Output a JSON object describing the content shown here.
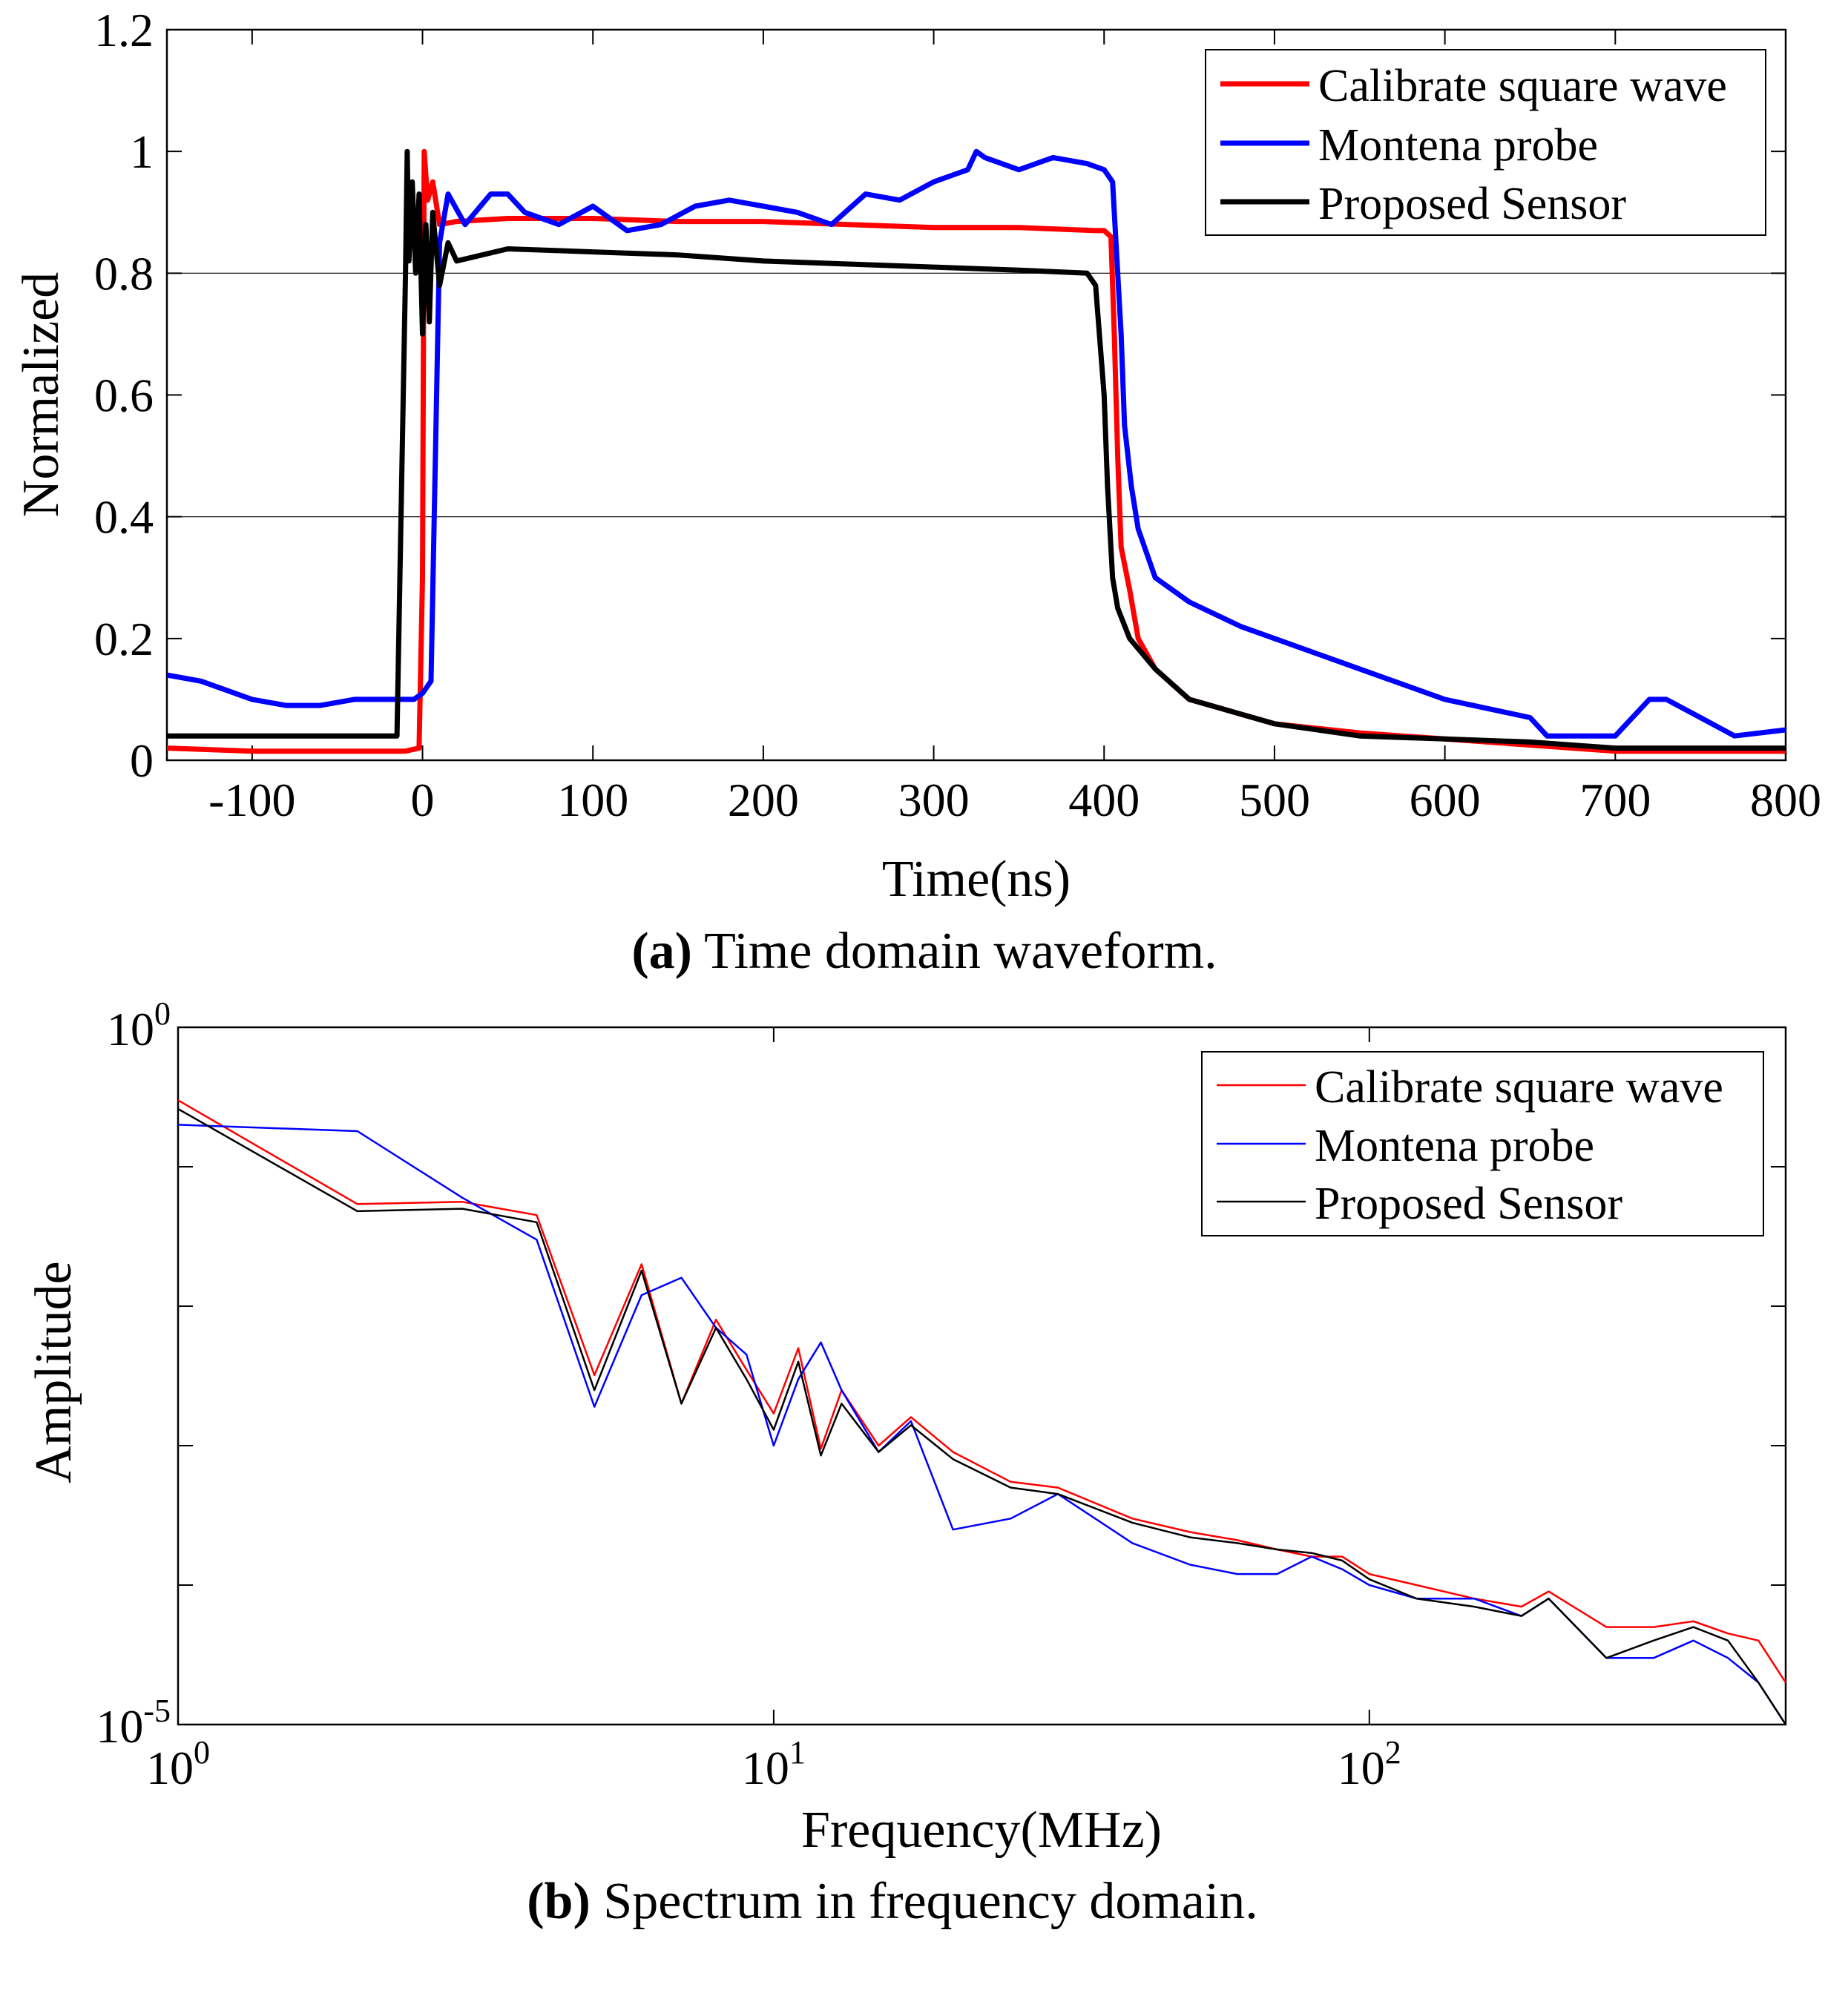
{
  "chart_data": [
    {
      "type": "line",
      "panel": "a",
      "caption_letter": "(a)",
      "caption_text": " Time domain waveform.",
      "xlabel": "Time(ns)",
      "ylabel": "Normalized",
      "xlim": [
        -150,
        800
      ],
      "ylim": [
        0,
        1.2
      ],
      "xticks": [
        -100,
        0,
        100,
        200,
        300,
        400,
        500,
        600,
        700,
        800
      ],
      "yticks": [
        0,
        0.2,
        0.4,
        0.6,
        0.8,
        1,
        1.2
      ],
      "ytick_labels": [
        "0",
        "0.2",
        "0.4",
        "0.6",
        "0.8",
        "1",
        "1.2"
      ],
      "grid_y": [
        0.4,
        0.8
      ],
      "legend_placement": "top-right",
      "series": [
        {
          "name": "Calibrate square wave",
          "color": "#ff0000",
          "x": [
            -150,
            -100,
            -50,
            -10,
            -2,
            0,
            1,
            3,
            6,
            10,
            20,
            50,
            100,
            150,
            200,
            250,
            300,
            350,
            395,
            400,
            404,
            406,
            408,
            410,
            415,
            420,
            430,
            450,
            500,
            550,
            600,
            650,
            700,
            750,
            800
          ],
          "y": [
            0.02,
            0.015,
            0.015,
            0.015,
            0.02,
            0.3,
            1.0,
            0.92,
            0.95,
            0.88,
            0.885,
            0.89,
            0.89,
            0.885,
            0.885,
            0.88,
            0.875,
            0.875,
            0.87,
            0.87,
            0.86,
            0.7,
            0.5,
            0.35,
            0.28,
            0.2,
            0.15,
            0.1,
            0.06,
            0.045,
            0.035,
            0.025,
            0.015,
            0.015,
            0.015
          ]
        },
        {
          "name": "Montena probe",
          "color": "#0000ff",
          "x": [
            -150,
            -130,
            -100,
            -80,
            -60,
            -40,
            -20,
            -5,
            0,
            5,
            10,
            15,
            25,
            40,
            50,
            60,
            80,
            100,
            120,
            140,
            160,
            180,
            200,
            220,
            240,
            260,
            280,
            300,
            310,
            320,
            325,
            330,
            350,
            370,
            390,
            400,
            405,
            410,
            412,
            416,
            420,
            430,
            450,
            480,
            500,
            550,
            600,
            650,
            660,
            700,
            720,
            730,
            750,
            770,
            800
          ],
          "y": [
            0.14,
            0.13,
            0.1,
            0.09,
            0.09,
            0.1,
            0.1,
            0.1,
            0.11,
            0.13,
            0.85,
            0.93,
            0.88,
            0.93,
            0.93,
            0.9,
            0.88,
            0.91,
            0.87,
            0.88,
            0.91,
            0.92,
            0.91,
            0.9,
            0.88,
            0.93,
            0.92,
            0.95,
            0.96,
            0.97,
            1.0,
            0.99,
            0.97,
            0.99,
            0.98,
            0.97,
            0.95,
            0.7,
            0.55,
            0.45,
            0.38,
            0.3,
            0.26,
            0.22,
            0.2,
            0.15,
            0.1,
            0.07,
            0.04,
            0.04,
            0.1,
            0.1,
            0.07,
            0.04,
            0.05
          ]
        },
        {
          "name": "Proposed Sensor",
          "color": "#000000",
          "x": [
            -150,
            -100,
            -50,
            -15,
            -10,
            -9,
            -8,
            -6,
            -4,
            -2,
            0,
            2,
            4,
            6,
            10,
            15,
            20,
            50,
            100,
            150,
            200,
            250,
            300,
            350,
            390,
            395,
            400,
            402,
            405,
            408,
            415,
            430,
            450,
            500,
            550,
            600,
            650,
            700,
            750,
            800
          ],
          "y": [
            0.04,
            0.04,
            0.04,
            0.04,
            0.8,
            1.0,
            0.82,
            0.95,
            0.8,
            0.93,
            0.7,
            0.88,
            0.72,
            0.9,
            0.78,
            0.85,
            0.82,
            0.84,
            0.835,
            0.83,
            0.82,
            0.815,
            0.81,
            0.805,
            0.8,
            0.78,
            0.6,
            0.45,
            0.3,
            0.25,
            0.2,
            0.15,
            0.1,
            0.06,
            0.04,
            0.035,
            0.03,
            0.02,
            0.02,
            0.02
          ]
        }
      ]
    },
    {
      "type": "line",
      "panel": "b",
      "caption_letter": "(b)",
      "caption_text": " Spectrum in frequency domain.",
      "xlabel": "Frequency(MHz)",
      "ylabel": "Amplitude",
      "x_scale": "log",
      "y_scale": "log",
      "xlim": [
        1,
        500
      ],
      "ylim": [
        1e-05,
        1
      ],
      "xtick_labels": [
        {
          "base": "10",
          "exp": "0"
        },
        {
          "base": "10",
          "exp": "1"
        },
        {
          "base": "10",
          "exp": "2"
        }
      ],
      "ytick_labels": [
        {
          "base": "10",
          "exp": "0"
        },
        {
          "base": "10",
          "exp": "-5"
        }
      ],
      "legend_placement": "top-right",
      "series": [
        {
          "name": "Calibrate square wave",
          "color": "#ff0000",
          "x": [
            1,
            2,
            3,
            4,
            5,
            6,
            7,
            8,
            9,
            10,
            11,
            12,
            13,
            15,
            17,
            20,
            25,
            30,
            40,
            50,
            60,
            70,
            80,
            90,
            100,
            120,
            150,
            180,
            200,
            250,
            300,
            350,
            400,
            450,
            500
          ],
          "y": [
            0.3,
            0.054,
            0.056,
            0.045,
            0.0032,
            0.02,
            0.002,
            0.008,
            0.0035,
            0.0017,
            0.005,
            0.00095,
            0.0025,
            0.001,
            0.0016,
            0.0009,
            0.00055,
            0.0005,
            0.0003,
            0.00024,
            0.00021,
            0.00018,
            0.00016,
            0.00016,
            0.00012,
            0.0001,
            8e-05,
            7e-05,
            9e-05,
            5e-05,
            5e-05,
            5.5e-05,
            4.5e-05,
            4e-05,
            2e-05
          ]
        },
        {
          "name": "Montena probe",
          "color": "#0000ff",
          "x": [
            1,
            2,
            3,
            4,
            5,
            6,
            7,
            8,
            9,
            10,
            11,
            12,
            13,
            15,
            17,
            20,
            25,
            30,
            40,
            50,
            60,
            70,
            80,
            90,
            100,
            120,
            150,
            180,
            200,
            250,
            300,
            350,
            400,
            450,
            500
          ],
          "y": [
            0.2,
            0.18,
            0.06,
            0.03,
            0.0019,
            0.012,
            0.016,
            0.007,
            0.0045,
            0.001,
            0.003,
            0.0055,
            0.0025,
            0.0009,
            0.0015,
            0.00025,
            0.0003,
            0.00045,
            0.0002,
            0.00014,
            0.00012,
            0.00012,
            0.00016,
            0.00013,
            0.0001,
            8e-05,
            8e-05,
            6e-05,
            8e-05,
            3e-05,
            3e-05,
            4e-05,
            3e-05,
            2e-05,
            1e-05
          ]
        },
        {
          "name": "Proposed Sensor",
          "color": "#000000",
          "x": [
            1,
            2,
            3,
            4,
            5,
            6,
            7,
            8,
            9,
            10,
            11,
            12,
            13,
            15,
            17,
            20,
            25,
            30,
            40,
            50,
            60,
            70,
            80,
            90,
            100,
            120,
            150,
            180,
            200,
            250,
            300,
            350,
            400,
            450,
            500
          ],
          "y": [
            0.26,
            0.048,
            0.05,
            0.04,
            0.0025,
            0.018,
            0.002,
            0.007,
            0.003,
            0.0013,
            0.004,
            0.00085,
            0.002,
            0.0009,
            0.0014,
            0.0008,
            0.0005,
            0.00045,
            0.00028,
            0.00022,
            0.0002,
            0.00018,
            0.00017,
            0.00015,
            0.00011,
            8e-05,
            7e-05,
            6e-05,
            8e-05,
            3e-05,
            4e-05,
            5e-05,
            4e-05,
            2e-05,
            1e-05
          ]
        }
      ]
    }
  ]
}
